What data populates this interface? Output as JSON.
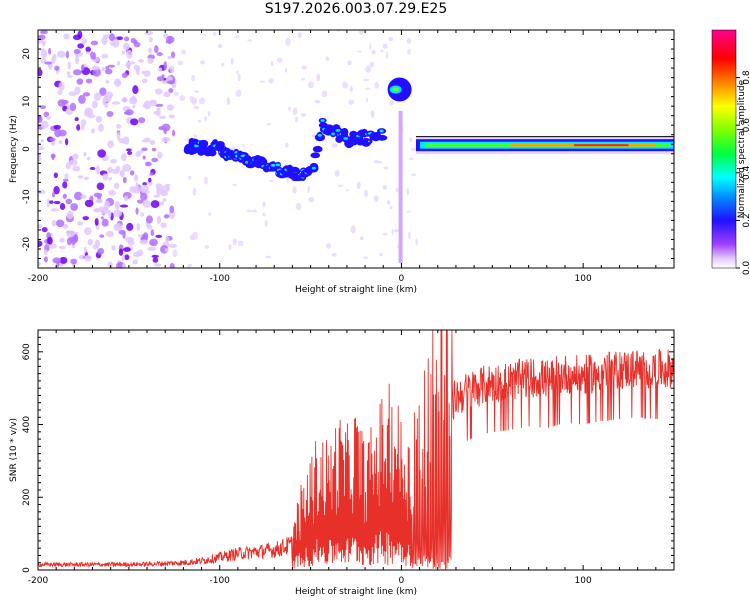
{
  "title": "S197.2026.003.07.29.E25",
  "chart_data": [
    {
      "type": "heatmap",
      "title": "S197.2026.003.07.29.E25",
      "xlabel": "Height of straight line (km)",
      "ylabel": "Frequency (Hz)",
      "xlim": [
        -200,
        150
      ],
      "ylim": [
        -25,
        25
      ],
      "xticks": [
        -200,
        -100,
        0,
        100
      ],
      "yticks": [
        -20,
        -10,
        0,
        10,
        20
      ],
      "colorbar": {
        "label": "Normalized spectral amplitude",
        "ticks": [
          0.0,
          0.2,
          0.4,
          0.6,
          0.8
        ],
        "range": [
          0,
          1
        ],
        "colors": [
          "#ffffff",
          "#d9b3ff",
          "#9000ff",
          "#2000ff",
          "#0080ff",
          "#00ffff",
          "#00ff40",
          "#80ff00",
          "#ffff00",
          "#ff8000",
          "#ff0000",
          "#ff0080"
        ]
      },
      "features": [
        {
          "name": "noise",
          "x_range": [
            -200,
            -125
          ],
          "freq_range": [
            -25,
            25
          ],
          "amplitude": 0.15
        },
        {
          "name": "track-1",
          "points": [
            [
              -118,
              0.5
            ],
            [
              -100,
              0.0
            ],
            [
              -85,
              -2.5
            ],
            [
              -70,
              -4.0
            ],
            [
              -55,
              -5.5
            ],
            [
              -48,
              -3.0
            ],
            [
              -44,
              5.0
            ],
            [
              -35,
              3.0
            ],
            [
              -28,
              2.0
            ],
            [
              -15,
              2.5
            ],
            [
              -10,
              3.0
            ]
          ],
          "amplitude": 0.3
        },
        {
          "name": "burst",
          "x": -1,
          "freq": 12.5,
          "amplitude": 0.45
        },
        {
          "name": "steady-line",
          "x_range": [
            8,
            150
          ],
          "freq": 0.8,
          "amplitude": 0.9
        }
      ]
    },
    {
      "type": "line",
      "xlabel": "Height of straight line (km)",
      "ylabel": "SNR (10 * v/v)",
      "xlim": [
        -200,
        150
      ],
      "ylim": [
        0,
        660
      ],
      "xticks": [
        -200,
        -100,
        0,
        100
      ],
      "yticks": [
        0,
        200,
        400,
        600
      ],
      "series": [
        {
          "name": "SNR",
          "color": "#e8302a",
          "x": [
            -200,
            -180,
            -160,
            -140,
            -120,
            -110,
            -100,
            -90,
            -80,
            -70,
            -60,
            -55,
            -50,
            -45,
            -40,
            -35,
            -30,
            -25,
            -20,
            -15,
            -10,
            -5,
            0,
            5,
            10,
            15,
            20,
            25,
            30,
            40,
            50,
            60,
            70,
            80,
            90,
            100,
            110,
            120,
            130,
            140,
            150
          ],
          "values": [
            15,
            15,
            15,
            16,
            20,
            25,
            35,
            45,
            50,
            55,
            70,
            120,
            160,
            200,
            180,
            220,
            200,
            230,
            180,
            210,
            250,
            260,
            220,
            180,
            280,
            320,
            400,
            440,
            480,
            505,
            520,
            525,
            535,
            530,
            545,
            540,
            550,
            555,
            560,
            555,
            560
          ]
        }
      ]
    }
  ]
}
